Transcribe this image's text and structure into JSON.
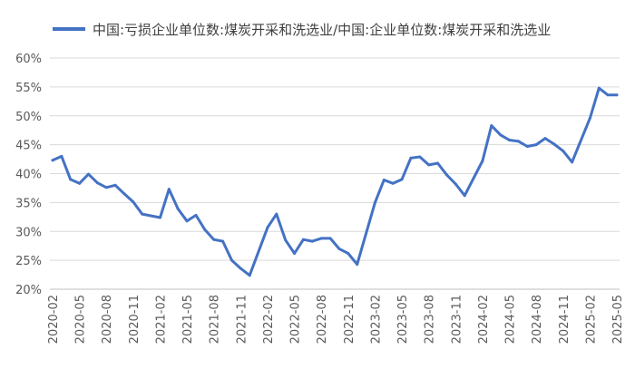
{
  "chart_data": {
    "type": "line",
    "title": "",
    "xlabel": "",
    "ylabel": "",
    "ylim": [
      20,
      60
    ],
    "yticks": [
      "20%",
      "25%",
      "30%",
      "35%",
      "40%",
      "45%",
      "50%",
      "55%",
      "60%"
    ],
    "ytick_values": [
      20,
      25,
      30,
      35,
      40,
      45,
      50,
      55,
      60
    ],
    "xticks": [
      "2020-02",
      "2020-05",
      "2020-08",
      "2020-11",
      "2021-02",
      "2021-05",
      "2021-08",
      "2021-11",
      "2022-02",
      "2022-05",
      "2022-08",
      "2022-11",
      "2023-02",
      "2023-05",
      "2023-08",
      "2023-11",
      "2024-02",
      "2024-05",
      "2024-08",
      "2024-11",
      "2025-02",
      "2025-05"
    ],
    "grid": true,
    "legend_position": "top-left",
    "series": [
      {
        "name": "中国:亏损企业单位数:煤炭开采和洗选业/中国:企业单位数:煤炭开采和洗选业",
        "color": "#4472C4",
        "x": [
          "2020-02",
          "2020-03",
          "2020-04",
          "2020-05",
          "2020-06",
          "2020-07",
          "2020-08",
          "2020-09",
          "2020-10",
          "2020-11",
          "2020-12",
          "2021-02",
          "2021-03",
          "2021-04",
          "2021-05",
          "2021-06",
          "2021-07",
          "2021-08",
          "2021-09",
          "2021-10",
          "2021-11",
          "2021-12",
          "2022-02",
          "2022-03",
          "2022-04",
          "2022-05",
          "2022-06",
          "2022-07",
          "2022-08",
          "2022-09",
          "2022-10",
          "2022-11",
          "2022-12",
          "2023-02",
          "2023-03",
          "2023-04",
          "2023-05",
          "2023-06",
          "2023-07",
          "2023-08",
          "2023-09",
          "2023-10",
          "2023-11",
          "2023-12",
          "2024-02",
          "2024-03",
          "2024-04",
          "2024-05",
          "2024-06",
          "2024-07",
          "2024-08",
          "2024-09",
          "2024-10",
          "2024-11",
          "2024-12",
          "2025-02",
          "2025-03",
          "2025-04",
          "2025-05"
        ],
        "values": [
          42.3,
          43.0,
          39.0,
          38.3,
          39.9,
          38.4,
          37.6,
          38.0,
          36.5,
          35.1,
          33.0,
          32.4,
          37.3,
          33.9,
          31.8,
          32.8,
          30.3,
          28.6,
          28.3,
          25.0,
          23.6,
          22.4,
          30.7,
          33.0,
          28.5,
          26.2,
          28.6,
          28.3,
          28.8,
          28.8,
          27.0,
          26.2,
          24.3,
          35.0,
          38.9,
          38.3,
          39.0,
          42.7,
          42.9,
          41.5,
          41.8,
          39.8,
          38.2,
          36.2,
          42.2,
          48.3,
          46.7,
          45.8,
          45.6,
          44.7,
          45.0,
          46.1,
          45.1,
          43.9,
          42.0,
          49.6,
          54.8,
          53.6,
          53.6
        ]
      }
    ]
  }
}
